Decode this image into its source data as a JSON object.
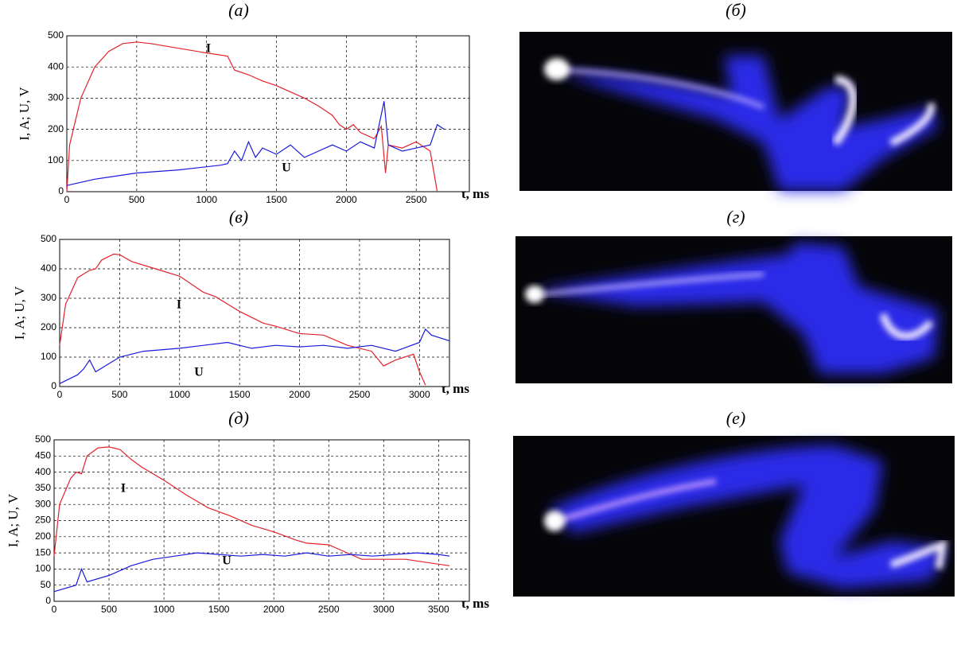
{
  "chart_data": [
    {
      "type": "line",
      "title": "(а)",
      "y_label": "I, A; U, V",
      "x_label": "t, ms",
      "xlim": [
        0,
        2880
      ],
      "xticks": [
        0,
        500,
        1000,
        1500,
        2000,
        2500
      ],
      "ylim": [
        0,
        500
      ],
      "yticks": [
        0,
        100,
        200,
        300,
        400,
        500
      ],
      "grid": true,
      "series": [
        {
          "name": "I",
          "color": "#e3222b",
          "x": [
            0,
            20,
            100,
            200,
            300,
            400,
            500,
            600,
            800,
            1000,
            1150,
            1200,
            1300,
            1400,
            1500,
            1600,
            1700,
            1800,
            1900,
            1950,
            2000,
            2050,
            2100,
            2200,
            2250,
            2280,
            2300,
            2400,
            2500,
            2600,
            2650
          ],
          "values": [
            0,
            150,
            300,
            400,
            450,
            475,
            480,
            475,
            460,
            445,
            435,
            390,
            375,
            355,
            340,
            320,
            300,
            275,
            245,
            215,
            200,
            215,
            190,
            170,
            210,
            60,
            150,
            140,
            160,
            130,
            0
          ]
        },
        {
          "name": "U",
          "color": "#1a1adc",
          "x": [
            0,
            200,
            500,
            800,
            1100,
            1150,
            1200,
            1250,
            1300,
            1350,
            1400,
            1500,
            1600,
            1700,
            1800,
            1900,
            2000,
            2100,
            2200,
            2270,
            2300,
            2400,
            2500,
            2600,
            2650,
            2700
          ],
          "values": [
            20,
            40,
            60,
            70,
            85,
            90,
            130,
            100,
            160,
            110,
            140,
            120,
            150,
            110,
            130,
            150,
            130,
            160,
            140,
            290,
            150,
            130,
            140,
            150,
            215,
            200
          ]
        }
      ]
    },
    {
      "type": "line",
      "title": "(в)",
      "y_label": "I, A; U, V",
      "x_label": "t, ms",
      "xlim": [
        0,
        3250
      ],
      "xticks": [
        0,
        500,
        1000,
        1500,
        2000,
        2500,
        3000
      ],
      "ylim": [
        0,
        500
      ],
      "yticks": [
        0,
        100,
        200,
        300,
        400,
        500
      ],
      "grid": true,
      "series": [
        {
          "name": "I",
          "color": "#e3222b",
          "x": [
            0,
            50,
            150,
            250,
            300,
            350,
            450,
            500,
            600,
            800,
            1000,
            1200,
            1300,
            1500,
            1700,
            1800,
            2000,
            2200,
            2400,
            2600,
            2700,
            2800,
            2950,
            3000,
            3050
          ],
          "values": [
            140,
            280,
            370,
            395,
            400,
            430,
            450,
            448,
            425,
            400,
            375,
            320,
            305,
            255,
            215,
            205,
            180,
            175,
            140,
            120,
            70,
            90,
            110,
            50,
            5
          ]
        },
        {
          "name": "U",
          "color": "#1a1adc",
          "x": [
            0,
            150,
            200,
            250,
            300,
            500,
            700,
            1000,
            1200,
            1400,
            1600,
            1800,
            2000,
            2200,
            2400,
            2600,
            2800,
            3000,
            3050,
            3100,
            3250
          ],
          "values": [
            10,
            40,
            60,
            90,
            50,
            100,
            120,
            130,
            140,
            150,
            130,
            140,
            135,
            140,
            130,
            140,
            120,
            150,
            195,
            175,
            155
          ]
        }
      ]
    },
    {
      "type": "line",
      "title": "(д)",
      "y_label": "I, A; U, V",
      "x_label": "t, ms",
      "xlim": [
        0,
        3780
      ],
      "xticks": [
        0,
        500,
        1000,
        1500,
        2000,
        2500,
        3000,
        3500
      ],
      "ylim": [
        0,
        500
      ],
      "yticks": [
        0,
        50,
        100,
        150,
        200,
        250,
        300,
        350,
        400,
        450,
        500
      ],
      "grid": true,
      "series": [
        {
          "name": "I",
          "color": "#e3222b",
          "x": [
            0,
            50,
            150,
            200,
            250,
            300,
            400,
            500,
            600,
            700,
            800,
            1000,
            1200,
            1400,
            1600,
            1800,
            2000,
            2200,
            2300,
            2500,
            2600,
            2800,
            3000,
            3200,
            3400,
            3600
          ],
          "values": [
            140,
            300,
            380,
            400,
            395,
            450,
            475,
            478,
            470,
            440,
            415,
            375,
            330,
            290,
            265,
            235,
            215,
            190,
            180,
            175,
            160,
            130,
            130,
            130,
            120,
            110
          ]
        },
        {
          "name": "U",
          "color": "#1a1adc",
          "x": [
            0,
            200,
            250,
            300,
            500,
            700,
            900,
            1100,
            1300,
            1500,
            1700,
            1900,
            2100,
            2300,
            2500,
            2700,
            2900,
            3100,
            3300,
            3500,
            3600
          ],
          "values": [
            30,
            50,
            100,
            60,
            80,
            110,
            130,
            140,
            150,
            145,
            140,
            145,
            140,
            150,
            140,
            145,
            140,
            145,
            150,
            145,
            140
          ]
        }
      ]
    }
  ],
  "images": [
    {
      "label": "(б)"
    },
    {
      "label": "(г)"
    },
    {
      "label": "(е)"
    }
  ]
}
